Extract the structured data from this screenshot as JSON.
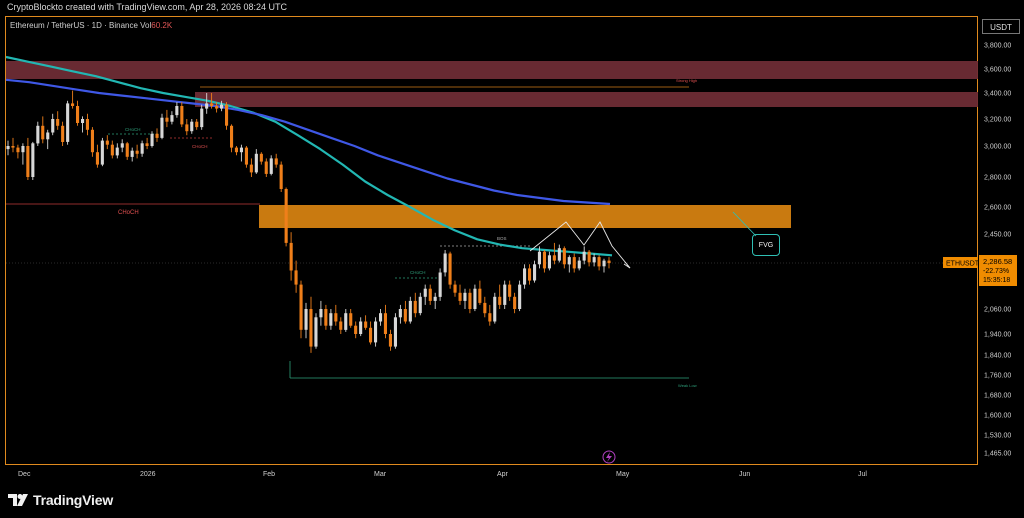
{
  "header": {
    "credit": "CryptoBlockto created with TradingView.com, Apr 28, 2026 08:24 UTC"
  },
  "legend": {
    "title": "Ethereum / TetherUS · 1D · Binance",
    "vol_label": "Vol",
    "vol_value": "60.2K"
  },
  "axis": {
    "currency": "USDT",
    "y_ticks": [
      "3,800.00",
      "3,600.00",
      "3,400.00",
      "3,200.00",
      "3,000.00",
      "2,800.00",
      "2,600.00",
      "2,450.00",
      "2,060.00",
      "1,940.00",
      "1,840.00",
      "1,760.00",
      "1,680.00",
      "1,600.00",
      "1,530.00",
      "1,465.00"
    ],
    "x_ticks": [
      "Dec",
      "2026",
      "Feb",
      "Mar",
      "Apr",
      "May",
      "Jun",
      "Jul"
    ]
  },
  "price_tag": {
    "symbol": "ETHUSDT",
    "price": "2,286.58",
    "change": "-22.73%",
    "countdown": "15:35:18"
  },
  "annotations": {
    "fvg": "FVG",
    "choch_main": "CHoCH",
    "choch_small_1": "CHoCH",
    "choch_small_2": "CHoCH",
    "choch_small_3": "CHoCH",
    "bos": "BOS",
    "strong_high": "Strong High",
    "weak_low": "Weak Low"
  },
  "brand": {
    "name": "TradingView"
  },
  "colors": {
    "background": "#000000",
    "bull": "#d8d8d8",
    "bear": "#ef7f1a",
    "ema_fast": "#22b7b3",
    "ema_slow": "#3f58e6",
    "zone_red": "#6e2c35",
    "zone_orange": "#c97a10",
    "price_tag": "#f08c00"
  },
  "chart_data": {
    "type": "candlestick",
    "title": "Ethereum / TetherUS · 1D · Binance",
    "ylim": [
      1410,
      3950
    ],
    "x_labels": [
      "Dec",
      "2026",
      "Feb",
      "Mar",
      "Apr",
      "May",
      "Jun",
      "Jul"
    ],
    "ohlc": [
      [
        2980,
        3040,
        2940,
        3000
      ],
      [
        3000,
        3060,
        2960,
        2990
      ],
      [
        2990,
        3010,
        2920,
        2960
      ],
      [
        2960,
        3020,
        2880,
        3000
      ],
      [
        3000,
        3060,
        2780,
        2800
      ],
      [
        2800,
        3030,
        2780,
        3020
      ],
      [
        3020,
        3180,
        3000,
        3150
      ],
      [
        3150,
        3220,
        3020,
        3050
      ],
      [
        3050,
        3120,
        2980,
        3100
      ],
      [
        3100,
        3240,
        3080,
        3200
      ],
      [
        3200,
        3260,
        3120,
        3150
      ],
      [
        3150,
        3180,
        3000,
        3030
      ],
      [
        3030,
        3340,
        3010,
        3320
      ],
      [
        3320,
        3420,
        3280,
        3300
      ],
      [
        3300,
        3340,
        3150,
        3170
      ],
      [
        3170,
        3220,
        3100,
        3200
      ],
      [
        3200,
        3240,
        3080,
        3120
      ],
      [
        3120,
        3140,
        2930,
        2960
      ],
      [
        2960,
        3010,
        2860,
        2880
      ],
      [
        2880,
        3060,
        2870,
        3040
      ],
      [
        3040,
        3080,
        2980,
        3010
      ],
      [
        3010,
        3040,
        2920,
        2940
      ],
      [
        2940,
        3020,
        2920,
        2990
      ],
      [
        2990,
        3050,
        2960,
        3020
      ],
      [
        3020,
        3030,
        2910,
        2930
      ],
      [
        2930,
        2990,
        2900,
        2970
      ],
      [
        2970,
        3010,
        2920,
        2950
      ],
      [
        2950,
        3040,
        2930,
        3020
      ],
      [
        3020,
        3060,
        2980,
        3000
      ],
      [
        3000,
        3110,
        2990,
        3090
      ],
      [
        3090,
        3130,
        3030,
        3060
      ],
      [
        3060,
        3240,
        3050,
        3210
      ],
      [
        3210,
        3270,
        3140,
        3180
      ],
      [
        3180,
        3260,
        3160,
        3230
      ],
      [
        3230,
        3330,
        3210,
        3300
      ],
      [
        3300,
        3330,
        3140,
        3160
      ],
      [
        3160,
        3200,
        3080,
        3110
      ],
      [
        3110,
        3200,
        3090,
        3180
      ],
      [
        3180,
        3200,
        3120,
        3140
      ],
      [
        3140,
        3310,
        3120,
        3280
      ],
      [
        3280,
        3400,
        3240,
        3320
      ],
      [
        3320,
        3400,
        3280,
        3300
      ],
      [
        3300,
        3330,
        3250,
        3280
      ],
      [
        3280,
        3340,
        3260,
        3310
      ],
      [
        3310,
        3330,
        3120,
        3150
      ],
      [
        3150,
        3160,
        2960,
        2990
      ],
      [
        2990,
        3000,
        2940,
        2960
      ],
      [
        2960,
        3010,
        2900,
        2990
      ],
      [
        2990,
        3000,
        2860,
        2880
      ],
      [
        2880,
        2920,
        2800,
        2830
      ],
      [
        2830,
        2980,
        2820,
        2950
      ],
      [
        2950,
        2960,
        2880,
        2900
      ],
      [
        2900,
        2920,
        2800,
        2820
      ],
      [
        2820,
        2940,
        2810,
        2920
      ],
      [
        2920,
        2950,
        2860,
        2880
      ],
      [
        2880,
        2900,
        2700,
        2720
      ],
      [
        2720,
        2730,
        2380,
        2400
      ],
      [
        2400,
        2460,
        2200,
        2250
      ],
      [
        2250,
        2300,
        2140,
        2180
      ],
      [
        2180,
        2200,
        1920,
        1960
      ],
      [
        1960,
        2090,
        1920,
        2060
      ],
      [
        2060,
        2120,
        1850,
        1880
      ],
      [
        1880,
        2040,
        1870,
        2020
      ],
      [
        2020,
        2100,
        1980,
        2060
      ],
      [
        2060,
        2080,
        1960,
        1980
      ],
      [
        1980,
        2060,
        1960,
        2040
      ],
      [
        2040,
        2080,
        1980,
        2000
      ],
      [
        2000,
        2020,
        1940,
        1960
      ],
      [
        1960,
        2060,
        1950,
        2040
      ],
      [
        2040,
        2060,
        1970,
        1980
      ],
      [
        1980,
        2000,
        1920,
        1940
      ],
      [
        1940,
        2020,
        1930,
        2000
      ],
      [
        2000,
        2030,
        1960,
        1970
      ],
      [
        1970,
        2000,
        1890,
        1900
      ],
      [
        1900,
        2020,
        1880,
        2000
      ],
      [
        2000,
        2060,
        1980,
        2040
      ],
      [
        2040,
        2080,
        1920,
        1940
      ],
      [
        1940,
        1960,
        1860,
        1880
      ],
      [
        1880,
        2040,
        1870,
        2020
      ],
      [
        2020,
        2080,
        1990,
        2060
      ],
      [
        2060,
        2100,
        1990,
        2000
      ],
      [
        2000,
        2120,
        1990,
        2100
      ],
      [
        2100,
        2140,
        2020,
        2040
      ],
      [
        2040,
        2140,
        2030,
        2120
      ],
      [
        2120,
        2180,
        2080,
        2160
      ],
      [
        2160,
        2180,
        2080,
        2100
      ],
      [
        2100,
        2140,
        2060,
        2120
      ],
      [
        2120,
        2260,
        2100,
        2240
      ],
      [
        2240,
        2360,
        2220,
        2340
      ],
      [
        2340,
        2350,
        2160,
        2180
      ],
      [
        2180,
        2200,
        2120,
        2140
      ],
      [
        2140,
        2180,
        2080,
        2100
      ],
      [
        2100,
        2160,
        2060,
        2140
      ],
      [
        2140,
        2160,
        2040,
        2060
      ],
      [
        2060,
        2180,
        2050,
        2160
      ],
      [
        2160,
        2200,
        2080,
        2090
      ],
      [
        2090,
        2120,
        2020,
        2040
      ],
      [
        2040,
        2080,
        1980,
        2000
      ],
      [
        2000,
        2140,
        1990,
        2120
      ],
      [
        2120,
        2180,
        2060,
        2080
      ],
      [
        2080,
        2200,
        2060,
        2180
      ],
      [
        2180,
        2200,
        2100,
        2120
      ],
      [
        2120,
        2140,
        2040,
        2060
      ],
      [
        2060,
        2200,
        2050,
        2180
      ],
      [
        2180,
        2280,
        2160,
        2260
      ],
      [
        2260,
        2280,
        2180,
        2200
      ],
      [
        2200,
        2300,
        2190,
        2280
      ],
      [
        2280,
        2380,
        2260,
        2350
      ],
      [
        2350,
        2360,
        2240,
        2260
      ],
      [
        2260,
        2350,
        2250,
        2330
      ],
      [
        2330,
        2400,
        2280,
        2300
      ],
      [
        2300,
        2390,
        2290,
        2370
      ],
      [
        2370,
        2380,
        2260,
        2280
      ],
      [
        2280,
        2330,
        2240,
        2320
      ],
      [
        2320,
        2340,
        2240,
        2260
      ],
      [
        2260,
        2320,
        2250,
        2300
      ],
      [
        2300,
        2380,
        2280,
        2350
      ],
      [
        2350,
        2360,
        2270,
        2290
      ],
      [
        2290,
        2340,
        2270,
        2320
      ],
      [
        2320,
        2330,
        2250,
        2270
      ],
      [
        2270,
        2310,
        2240,
        2300
      ],
      [
        2300,
        2320,
        2260,
        2286
      ]
    ],
    "series": [
      {
        "values": [
          3700,
          3660,
          3620,
          3580,
          3540,
          3490,
          3440,
          3400,
          3370,
          3340,
          3300,
          3250,
          3180,
          3080,
          2980,
          2880,
          2770,
          2680,
          2600,
          2530,
          2470,
          2420,
          2390,
          2370,
          2360,
          2350,
          2340,
          2330
        ]
      },
      {
        "values": [
          3510,
          3490,
          3460,
          3430,
          3400,
          3380,
          3360,
          3340,
          3320,
          3300,
          3270,
          3230,
          3180,
          3120,
          3060,
          3000,
          2940,
          2890,
          2840,
          2790,
          2750,
          2710,
          2680,
          2660,
          2640,
          2630,
          2620
        ]
      }
    ]
  }
}
